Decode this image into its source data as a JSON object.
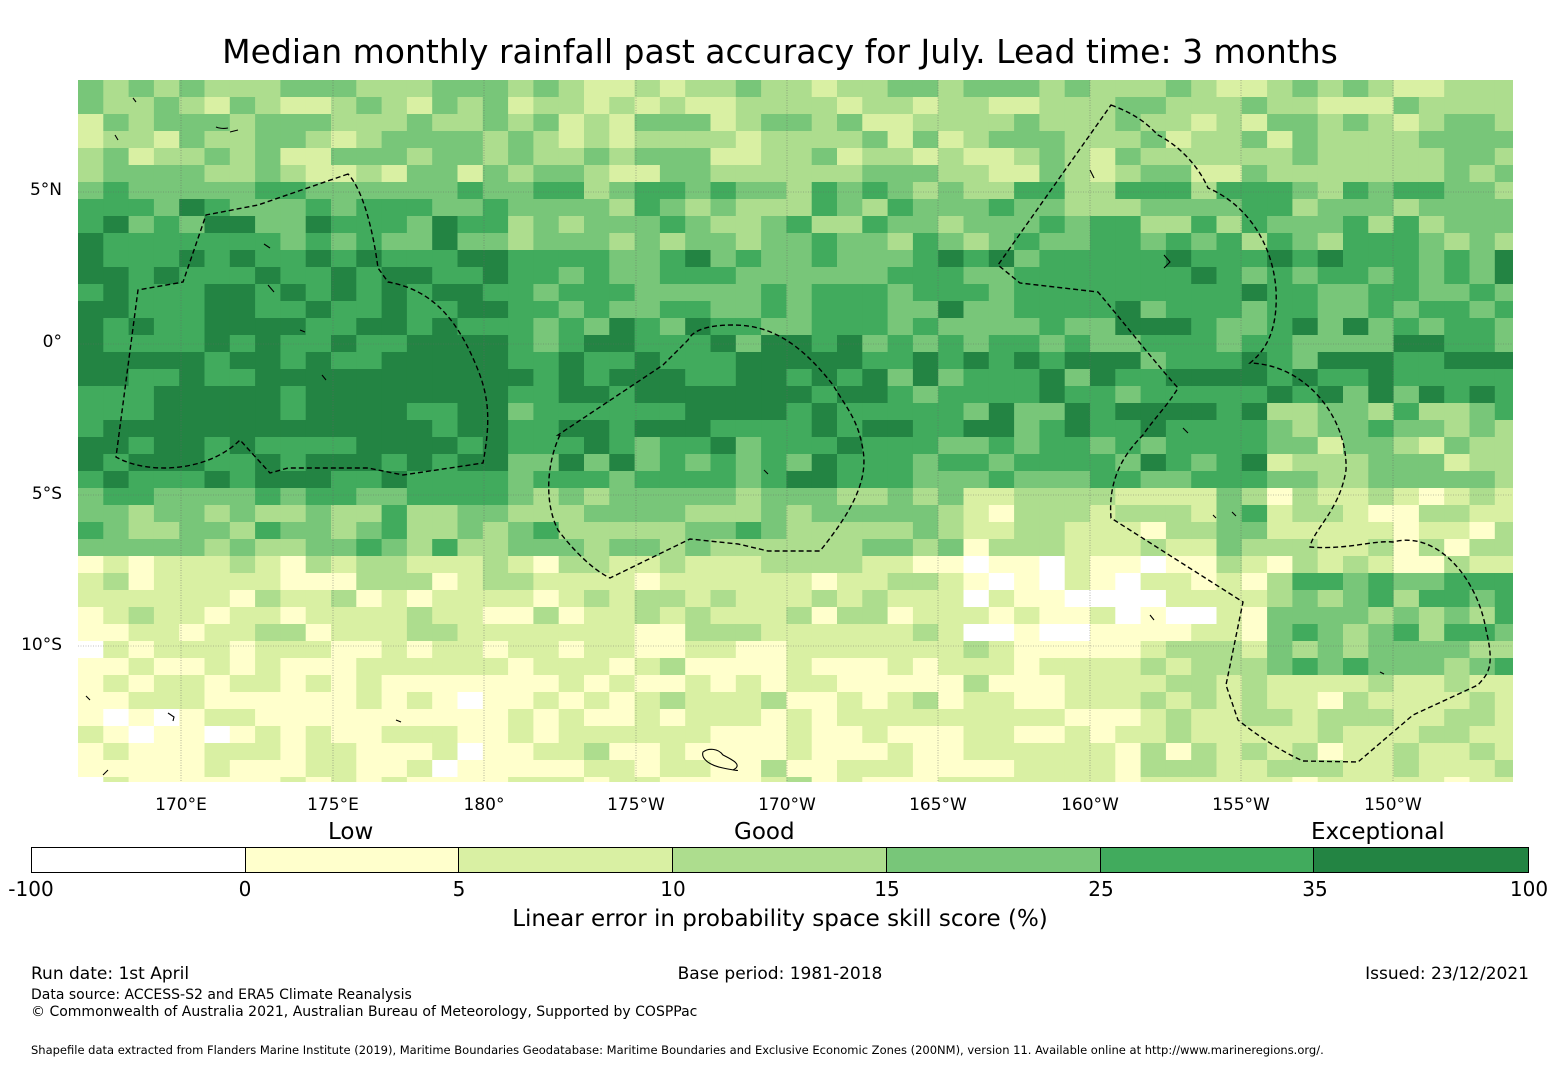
{
  "title": "Median monthly rainfall past accuracy for July. Lead time: 3 months",
  "map": {
    "lat_labels": [
      "5°N",
      "0°",
      "5°S",
      "10°S"
    ],
    "lon_labels": [
      "170°E",
      "175°E",
      "180°",
      "175°W",
      "170°W",
      "165°W",
      "160°W",
      "155°W",
      "150°W"
    ],
    "eez_lines": "dashed",
    "coastlines": "thin black"
  },
  "colorbar": {
    "category_labels": [
      "Low",
      "Good",
      "Exceptional"
    ],
    "ticks": [
      "-100",
      "0",
      "5",
      "10",
      "15",
      "25",
      "35",
      "100"
    ],
    "colors": [
      "#ffffff",
      "#ffffcc",
      "#d9f0a3",
      "#addd8e",
      "#78c679",
      "#41ab5d",
      "#238443"
    ],
    "title": "Linear error in probability space skill score (%)"
  },
  "footer": {
    "run_date": "Run date: 1st April",
    "base_period": "Base period: 1981-2018",
    "issued": "Issued: 23/12/2021",
    "data_source": "Data source: ACCESS-S2 and ERA5 Climate Reanalysis",
    "copyright": "© Commonwealth of Australia 2021, Australian Bureau of Meteorology, Supported by COSPPac",
    "shapefile": "Shapefile data extracted from Flanders Marine Institute (2019), Maritime Boundaries Geodatabase: Maritime Boundaries and Exclusive Economic Zones (200NM), version 11. Available online at http://www.marineregions.org/."
  }
}
